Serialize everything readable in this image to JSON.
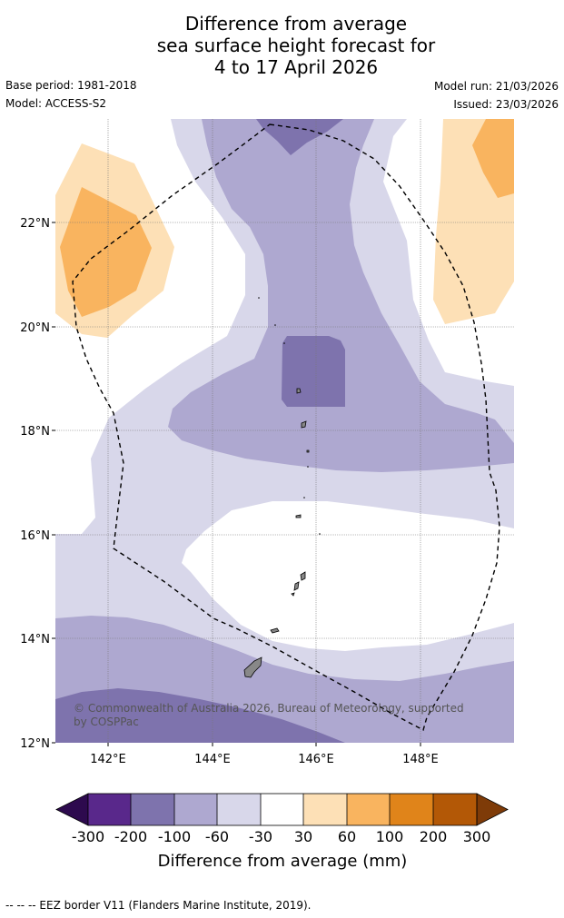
{
  "title": {
    "line1": "Difference from average",
    "line2": "sea surface height forecast for",
    "line3": "4 to 17 April 2026"
  },
  "meta": {
    "base_period": "Base period: 1981-2018",
    "model": "Model: ACCESS-S2",
    "model_run": "Model run: 21/03/2026",
    "issued": "Issued: 23/03/2026"
  },
  "map": {
    "lon_ticks": [
      "142°E",
      "144°E",
      "146°E",
      "148°E"
    ],
    "lat_ticks": [
      "22°N",
      "20°N",
      "18°N",
      "16°N",
      "14°N",
      "12°N"
    ],
    "copyright_line1": "© Commonwealth of Australia 2026, Bureau of Meteorology, supported",
    "copyright_line2": "by COSPPac",
    "colors": {
      "neg_very_dark": "#7e73ad",
      "neg_medium": "#aea8d0",
      "neg_light": "#d8d7ea",
      "neutral": "#ffffff",
      "pos_light": "#fde0b6",
      "pos_medium": "#f9b45f"
    }
  },
  "colorbar": {
    "title": "Difference from average (mm)",
    "labels": [
      "-300",
      "-200",
      "-100",
      "-60",
      "-30",
      "30",
      "60",
      "100",
      "200",
      "300"
    ],
    "colors": {
      "under": "#2d0a4e",
      "c1": "#59288b",
      "c2": "#7e73ad",
      "c3": "#aea8d0",
      "c4": "#d8d7ea",
      "c5": "#ffffff",
      "c6": "#fde0b6",
      "c7": "#f9b45f",
      "c8": "#e0841a",
      "c9": "#b35806",
      "over": "#7e3b08"
    }
  },
  "footer": {
    "legend_text": "--  --  -- EEZ border V11 (Flanders Marine Institute, 2019)."
  }
}
